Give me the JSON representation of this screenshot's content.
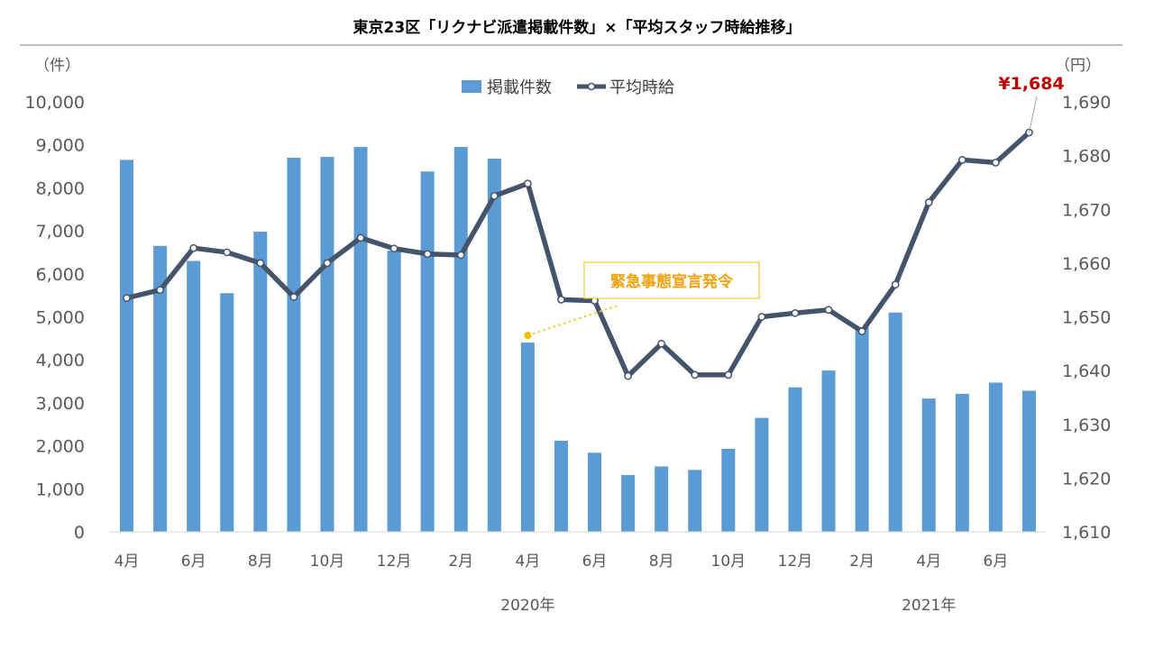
{
  "chart_data": {
    "type": "bar+line",
    "title": "東京23区「リクナビ派遣掲載件数」×「平均スタッフ時給推移」",
    "left_unit": "（件）",
    "right_unit": "（円）",
    "x_tick_labels": [
      "4月",
      "6月",
      "8月",
      "10月",
      "12月",
      "2月",
      "4月",
      "6月",
      "8月",
      "10月",
      "12月",
      "2月",
      "4月",
      "6月"
    ],
    "year_labels": [
      "2020年",
      "2021年"
    ],
    "categories": [
      "2019-04",
      "2019-05",
      "2019-06",
      "2019-07",
      "2019-08",
      "2019-09",
      "2019-10",
      "2019-11",
      "2019-12",
      "2020-01",
      "2020-02",
      "2020-03",
      "2020-04",
      "2020-05",
      "2020-06",
      "2020-07",
      "2020-08",
      "2020-09",
      "2020-10",
      "2020-11",
      "2020-12",
      "2021-01",
      "2021-02",
      "2021-03",
      "2021-04",
      "2021-05",
      "2021-06",
      "2021-07"
    ],
    "series": [
      {
        "name": "掲載件数",
        "type": "bar",
        "axis": "left",
        "color": "#5b9bd5",
        "values": [
          8650,
          6650,
          6300,
          5550,
          6980,
          8700,
          8720,
          8950,
          6540,
          8380,
          8950,
          8680,
          4400,
          2120,
          1840,
          1320,
          1520,
          1440,
          1930,
          2650,
          3360,
          3750,
          4760,
          5100,
          3100,
          3210,
          3470,
          3280
        ]
      },
      {
        "name": "平均時給",
        "type": "line",
        "axis": "right",
        "color": "#44546a",
        "values": [
          1653.5,
          1655.0,
          1662.8,
          1662.0,
          1660.0,
          1653.7,
          1660.0,
          1664.7,
          1662.7,
          1661.7,
          1661.5,
          1672.5,
          1674.8,
          1653.2,
          1653.0,
          1639.0,
          1645.0,
          1639.2,
          1639.2,
          1650.0,
          1650.7,
          1651.3,
          1647.3,
          1656.0,
          1671.3,
          1679.2,
          1678.7,
          1684.3
        ]
      }
    ],
    "left_axis": {
      "min": 0,
      "max": 10000,
      "step": 1000
    },
    "right_axis": {
      "min": 1610,
      "max": 1690,
      "step": 10
    },
    "legend_position": "top-center",
    "grid": false,
    "annotations": [
      {
        "text": "緊急事態宣言発令",
        "color": "#f2a20a",
        "target_index": 12
      },
      {
        "text": "¥1,684",
        "color": "#c00000",
        "target_index": 27
      }
    ]
  }
}
